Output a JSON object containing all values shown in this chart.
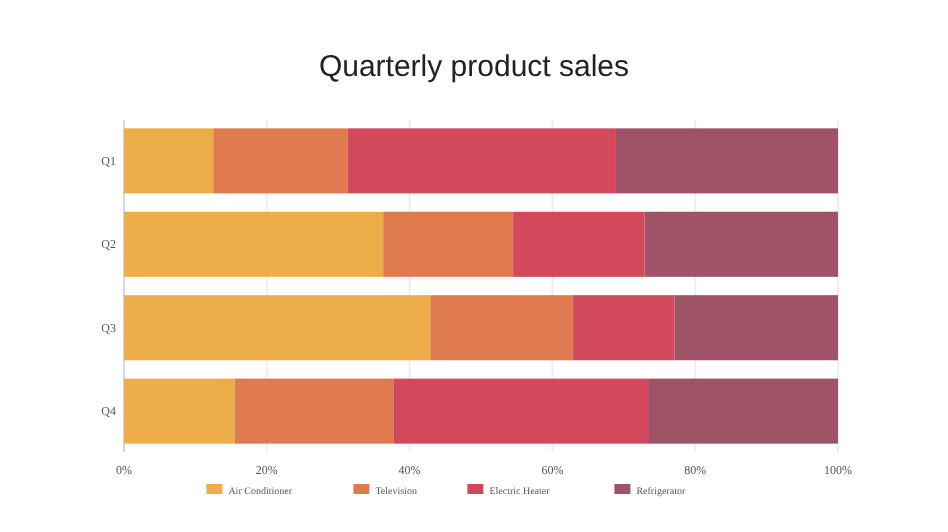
{
  "chart_data": {
    "type": "bar",
    "title": "Quarterly product sales",
    "orientation": "horizontal",
    "stacked": true,
    "categories": [
      "Q1",
      "Q2",
      "Q3",
      "Q4"
    ],
    "series": [
      {
        "name": "Air Conditioner",
        "color": "#edae49",
        "values": [
          12.5,
          36.3,
          42.9,
          15.5
        ]
      },
      {
        "name": "Television",
        "color": "#e07b4f",
        "values": [
          18.8,
          18.2,
          20.0,
          22.3
        ]
      },
      {
        "name": "Electric Heater",
        "color": "#d1495b",
        "values": [
          37.6,
          18.4,
          14.2,
          35.6
        ]
      },
      {
        "name": "Refrigerator",
        "color": "#9e5466",
        "values": [
          31.1,
          27.1,
          22.9,
          26.6
        ]
      }
    ],
    "xlim": [
      0,
      100
    ],
    "xticks": [
      {
        "value": 0,
        "label": "0%"
      },
      {
        "value": 20,
        "label": "20%"
      },
      {
        "value": 40,
        "label": "40%"
      },
      {
        "value": 60,
        "label": "60%"
      },
      {
        "value": 80,
        "label": "80%"
      },
      {
        "value": 100,
        "label": "100%"
      }
    ],
    "grid": "x",
    "legend": "bottom"
  }
}
